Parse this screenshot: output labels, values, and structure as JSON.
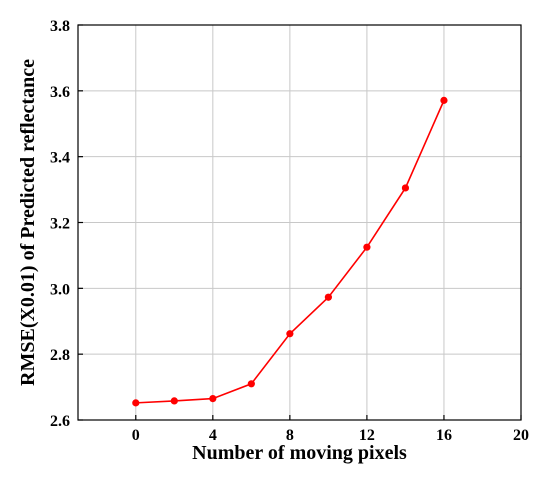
{
  "chart_data": {
    "type": "line",
    "xlabel": "Number of moving pixels",
    "ylabel": "RMSE(X0.01) of Predicted reflectance",
    "xlim": [
      -3,
      20
    ],
    "ylim": [
      2.6,
      3.8
    ],
    "x_ticks": [
      "0",
      "4",
      "8",
      "12",
      "16",
      "20"
    ],
    "y_ticks": [
      "2.6",
      "2.8",
      "3.0",
      "3.2",
      "3.4",
      "3.6",
      "3.8"
    ],
    "grid": true,
    "series": [
      {
        "color": "#ff0000",
        "x": [
          0,
          2,
          4,
          6,
          8,
          10,
          12,
          14,
          16
        ],
        "y": [
          2.652,
          2.658,
          2.665,
          2.71,
          2.862,
          2.973,
          3.125,
          3.305,
          3.571
        ]
      }
    ]
  }
}
